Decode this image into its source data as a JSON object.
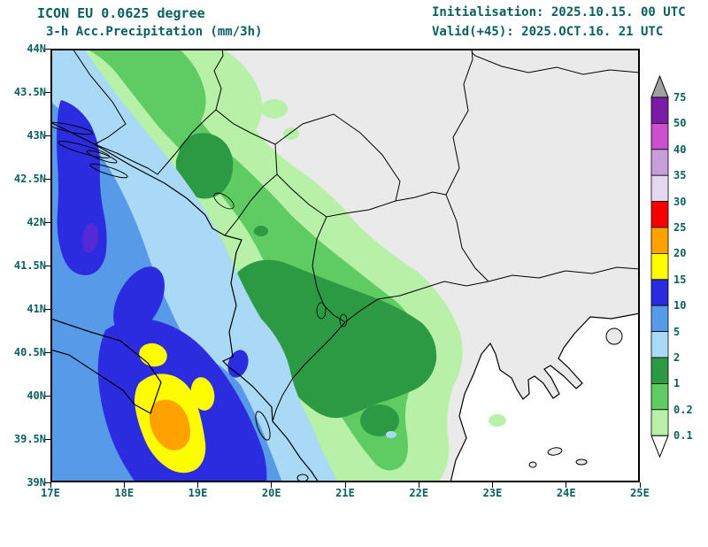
{
  "header": {
    "model": "ICON EU 0.0625 degree",
    "product": "3-h Acc.Precipitation (mm/3h)",
    "initialisation": "Initialisation: 2025.10.15. 00 UTC",
    "valid": "Valid(+45): 2025.OCT.16. 21 UTC"
  },
  "axes": {
    "lat_labels": [
      "44N",
      "43.5N",
      "43N",
      "42.5N",
      "42N",
      "41.5N",
      "41N",
      "40.5N",
      "40N",
      "39.5N",
      "39N"
    ],
    "lon_labels": [
      "17E",
      "18E",
      "19E",
      "20E",
      "21E",
      "22E",
      "23E",
      "24E",
      "25E"
    ]
  },
  "legend": {
    "levels": [
      "75",
      "50",
      "40",
      "35",
      "30",
      "25",
      "20",
      "15",
      "10",
      "5",
      "2",
      "1",
      "0.2",
      "0.1"
    ],
    "segment_colors": [
      "purple",
      "magenta",
      "lightpurple",
      "lavender",
      "red",
      "orange",
      "yellow",
      "darkblue",
      "blue",
      "lightblue",
      "darkgreen",
      "green",
      "lightgreen"
    ],
    "arrow_top": "above",
    "arrow_bottom": "below"
  },
  "palette": {
    "lightgreen": "#b7f1a8",
    "green": "#5ecb63",
    "darkgreen": "#2c9a42",
    "lightblue": "#a9d9f5",
    "blue": "#569ae8",
    "darkblue": "#2b2ce0",
    "indigo": "#5429d6",
    "yellow": "#fdfd00",
    "orange": "#ffa200",
    "red": "#f80000",
    "lavender": "#e6d9ef",
    "lightpurple": "#c79ed9",
    "magenta": "#cc4fcf",
    "purple": "#7c1ca6",
    "above": "#a0a0a0",
    "below": "#ffffff",
    "land": "#eaeaea",
    "sea": "#ffffff",
    "text": "#0a5f5f"
  }
}
